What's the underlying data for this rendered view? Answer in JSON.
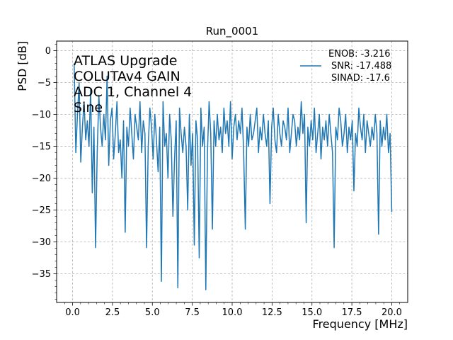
{
  "chart_data": {
    "type": "line",
    "title": "Run_0001",
    "xlabel": "Frequency [MHz]",
    "ylabel": "PSD [dB]",
    "xlim": [
      -1.0,
      21.0
    ],
    "ylim": [
      -39.5,
      1.5
    ],
    "grid": true,
    "xticks": [
      0.0,
      2.5,
      5.0,
      7.5,
      10.0,
      12.5,
      15.0,
      17.5,
      20.0
    ],
    "xtick_labels": [
      "0.0",
      "2.5",
      "5.0",
      "7.5",
      "10.0",
      "12.5",
      "15.0",
      "17.5",
      "20.0"
    ],
    "yticks": [
      0,
      -5,
      -10,
      -15,
      -20,
      -25,
      -30,
      -35
    ],
    "ytick_labels": [
      "0",
      "−5",
      "−10",
      "−15",
      "−20",
      "−25",
      "−30",
      "−35"
    ],
    "annotation": [
      "ATLAS Upgrade",
      "COLUTAv4 GAIN",
      "ADC 1, Channel 4",
      "Sine"
    ],
    "legend": {
      "position": "upper-right",
      "lines": [
        "ENOB: -3.216",
        "SNR: -17.488",
        "SINAD: -17.6"
      ]
    },
    "series": [
      {
        "name": "ENOB: -3.216 SNR: -17.488 SINAD: -17.6",
        "color": "#1f77b4",
        "x_start": 0.1,
        "x_end": 20.0,
        "values": [
          -2.0,
          -16.0,
          -10.0,
          -5.0,
          -17.5,
          -12.0,
          -8.0,
          -14.0,
          -11.0,
          -15.0,
          -6.0,
          -22.3,
          -12.0,
          -30.9,
          -16.0,
          -7.0,
          -12.0,
          -15.0,
          -10.0,
          -14.0,
          -4.0,
          -18.0,
          -11.0,
          -9.0,
          -17.0,
          -13.0,
          -8.0,
          -16.0,
          -14.0,
          -20.0,
          -11.0,
          -28.5,
          -12.0,
          -15.0,
          -9.0,
          -13.0,
          -17.0,
          -10.0,
          -12.0,
          -14.0,
          -8.0,
          -16.0,
          -11.0,
          -13.0,
          -30.9,
          -15.0,
          -9.0,
          -12.0,
          -17.0,
          -10.0,
          -14.0,
          -19.0,
          -12.0,
          -36.2,
          -8.0,
          -15.0,
          -13.0,
          -20.0,
          -10.0,
          -14.0,
          -26.0,
          -17.0,
          -11.0,
          -37.2,
          -9.0,
          -13.0,
          -16.0,
          -12.0,
          -15.0,
          -25.0,
          -10.0,
          -18.0,
          -13.0,
          -30.5,
          -11.0,
          -14.0,
          -32.5,
          -9.0,
          -15.0,
          -12.0,
          -37.5,
          -16.0,
          -8.0,
          -13.0,
          -28.0,
          -11.0,
          -15.0,
          -10.0,
          -14.0,
          -12.0,
          -16.0,
          -9.0,
          -13.0,
          -11.0,
          -15.0,
          -8.0,
          -17.0,
          -12.0,
          -10.0,
          -14.0,
          -11.0,
          -13.0,
          -9.0,
          -16.0,
          -28.0,
          -12.0,
          -15.0,
          -10.0,
          -14.0,
          -13.0,
          -11.0,
          -9.0,
          -16.0,
          -12.0,
          -14.0,
          -10.0,
          -13.0,
          -15.0,
          -11.0,
          -24.0,
          -12.0,
          -9.0,
          -14.0,
          -16.0,
          -10.0,
          -13.0,
          -15.0,
          -11.0,
          -12.0,
          -14.0,
          -9.0,
          -16.0,
          -13.0,
          -10.0,
          -11.0,
          -15.0,
          -12.0,
          -14.0,
          -8.0,
          -13.0,
          -10.0,
          -27.0,
          -12.0,
          -15.0,
          -11.0,
          -14.0,
          -9.0,
          -16.0,
          -13.0,
          -10.0,
          -17.0,
          -12.0,
          -14.0,
          -11.0,
          -15.0,
          -10.0,
          -13.0,
          -16.0,
          -30.9,
          -12.0,
          -14.0,
          -9.0,
          -11.0,
          -15.0,
          -13.0,
          -10.0,
          -16.0,
          -12.0,
          -14.0,
          -11.0,
          -22.0,
          -13.0,
          -15.0,
          -9.0,
          -12.0,
          -14.0,
          -10.0,
          -16.0,
          -11.0,
          -13.0,
          -15.0,
          -12.0,
          -14.0,
          -10.0,
          -13.0,
          -28.8,
          -11.0,
          -15.0,
          -12.0,
          -14.0,
          -10.0,
          -16.0,
          -13.0,
          -25.3
        ]
      }
    ]
  }
}
